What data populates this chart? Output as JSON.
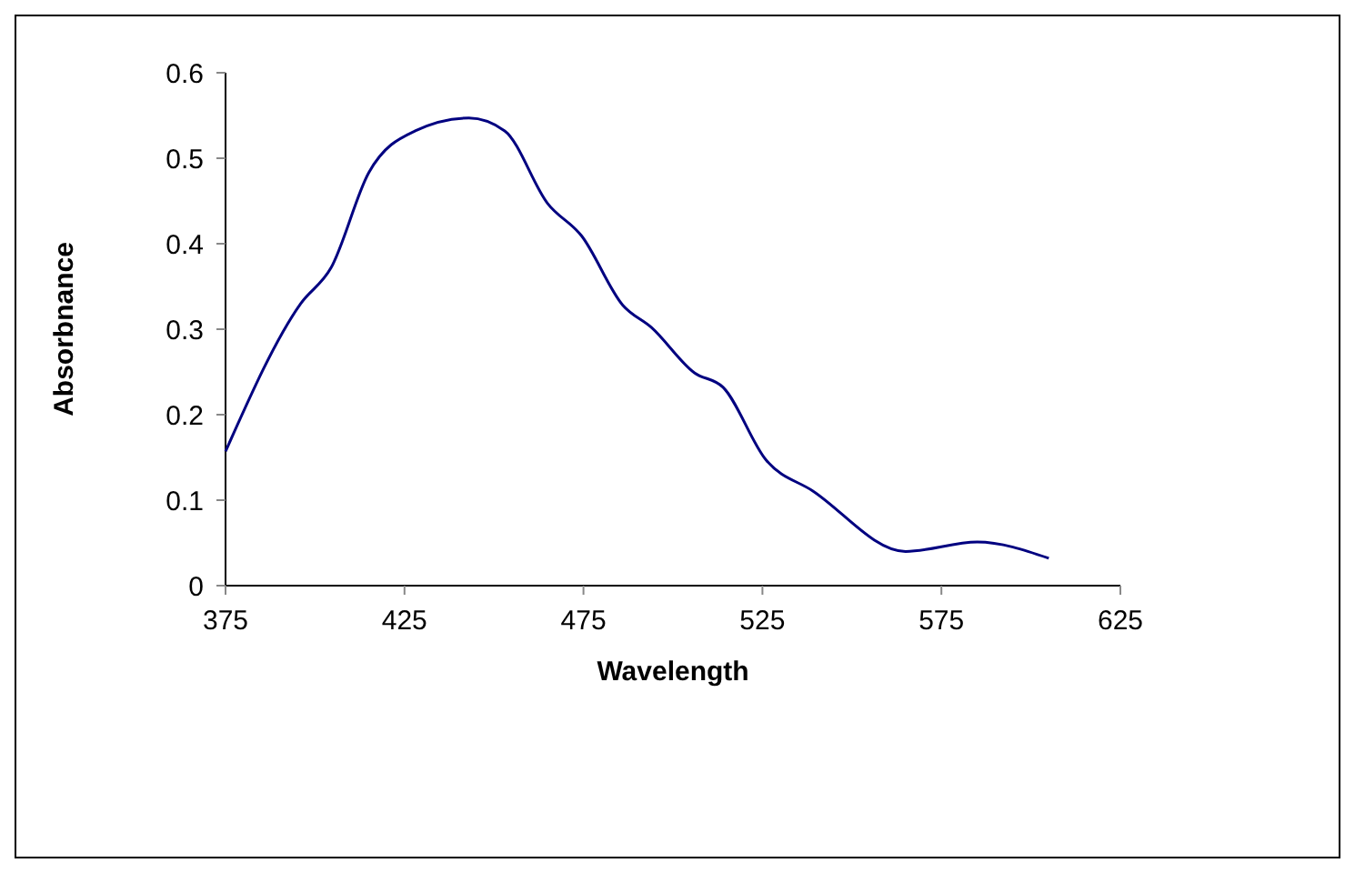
{
  "chart_data": {
    "type": "line",
    "xlabel": "Wavelength",
    "ylabel": "Absorbnance",
    "x": [
      375,
      396,
      404.5,
      415,
      428,
      443,
      453,
      465,
      474.5,
      486,
      494,
      506,
      514,
      526,
      539,
      565,
      585,
      605
    ],
    "series": [
      {
        "color": "#000080",
        "values": [
          0.157,
          0.33,
          0.372,
          0.483,
          0.532,
          0.547,
          0.532,
          0.447,
          0.409,
          0.328,
          0.302,
          0.249,
          0.232,
          0.147,
          0.111,
          0.04,
          0.051,
          0.032
        ]
      }
    ],
    "xlim": [
      375,
      625
    ],
    "xticks": [
      375,
      425,
      475,
      525,
      575,
      625
    ],
    "ylim": [
      0,
      0.6
    ],
    "yticks": [
      0,
      0.1,
      0.2,
      0.3,
      0.4,
      0.5,
      0.6
    ],
    "grid": false,
    "marker": "none",
    "line_style": "solid"
  }
}
